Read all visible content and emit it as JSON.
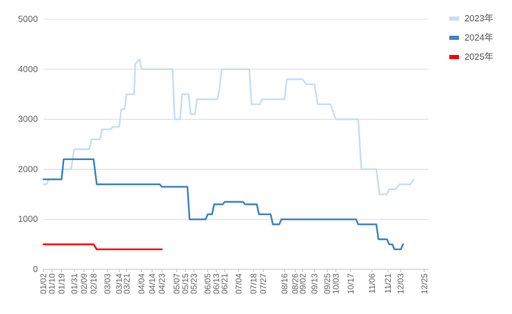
{
  "chart_data": {
    "type": "line",
    "title": "",
    "xlabel": "",
    "ylabel": "",
    "ylim": [
      0,
      5000
    ],
    "yticks": [
      0,
      1000,
      2000,
      3000,
      4000,
      5000
    ],
    "grid": true,
    "legend_position": "top-right",
    "x_tick_labels": [
      "01/02",
      "01/10",
      "01/19",
      "01/31",
      "02/09",
      "02/18",
      "03/03",
      "03/14",
      "03/21",
      "04/04",
      "04/14",
      "04/23",
      "05/07",
      "05/15",
      "05/23",
      "06/05",
      "06/13",
      "06/21",
      "07/04",
      "07/18",
      "07/27",
      "08/16",
      "08/26",
      "09/02",
      "09/13",
      "09/25",
      "10/03",
      "10/17",
      "11/06",
      "11/21",
      "12/03",
      "12/25"
    ],
    "series": [
      {
        "name": "2023年",
        "color": "#c8dff2",
        "points": [
          [
            "01/02",
            1700
          ],
          [
            "01/05",
            1700
          ],
          [
            "01/07",
            1800
          ],
          [
            "01/19",
            1800
          ],
          [
            "01/20",
            2000
          ],
          [
            "01/28",
            2000
          ],
          [
            "01/30",
            2300
          ],
          [
            "01/31",
            2400
          ],
          [
            "02/14",
            2400
          ],
          [
            "02/16",
            2600
          ],
          [
            "02/24",
            2600
          ],
          [
            "02/26",
            2800
          ],
          [
            "03/06",
            2800
          ],
          [
            "03/08",
            2850
          ],
          [
            "03/14",
            2850
          ],
          [
            "03/16",
            3200
          ],
          [
            "03/19",
            3200
          ],
          [
            "03/21",
            3500
          ],
          [
            "03/28",
            3500
          ],
          [
            "03/29",
            4100
          ],
          [
            "04/02",
            4200
          ],
          [
            "04/04",
            4000
          ],
          [
            "05/03",
            4000
          ],
          [
            "05/05",
            3000
          ],
          [
            "05/10",
            3000
          ],
          [
            "05/12",
            3500
          ],
          [
            "05/18",
            3500
          ],
          [
            "05/20",
            3100
          ],
          [
            "05/24",
            3100
          ],
          [
            "05/26",
            3400
          ],
          [
            "06/14",
            3400
          ],
          [
            "06/16",
            3600
          ],
          [
            "06/18",
            4000
          ],
          [
            "07/14",
            4000
          ],
          [
            "07/16",
            3300
          ],
          [
            "07/24",
            3300
          ],
          [
            "07/26",
            3400
          ],
          [
            "08/16",
            3400
          ],
          [
            "08/18",
            3800
          ],
          [
            "09/02",
            3800
          ],
          [
            "09/05",
            3700
          ],
          [
            "09/13",
            3700
          ],
          [
            "09/16",
            3300
          ],
          [
            "09/28",
            3300
          ],
          [
            "10/03",
            3000
          ],
          [
            "10/24",
            3000
          ],
          [
            "10/27",
            2000
          ],
          [
            "11/10",
            2000
          ],
          [
            "11/13",
            1500
          ],
          [
            "11/20",
            1500
          ],
          [
            "11/22",
            1600
          ],
          [
            "11/28",
            1600
          ],
          [
            "12/02",
            1700
          ],
          [
            "12/12",
            1700
          ],
          [
            "12/15",
            1800
          ]
        ]
      },
      {
        "name": "2024年",
        "color": "#4183c4",
        "points": [
          [
            "01/02",
            1800
          ],
          [
            "01/19",
            1800
          ],
          [
            "01/21",
            2200
          ],
          [
            "02/18",
            2200
          ],
          [
            "02/21",
            1700
          ],
          [
            "04/21",
            1700
          ],
          [
            "04/23",
            1650
          ],
          [
            "05/17",
            1650
          ],
          [
            "05/19",
            1000
          ],
          [
            "06/03",
            1000
          ],
          [
            "06/05",
            1100
          ],
          [
            "06/09",
            1100
          ],
          [
            "06/11",
            1300
          ],
          [
            "06/19",
            1300
          ],
          [
            "06/21",
            1350
          ],
          [
            "07/08",
            1350
          ],
          [
            "07/10",
            1300
          ],
          [
            "07/21",
            1300
          ],
          [
            "07/23",
            1100
          ],
          [
            "08/03",
            1100
          ],
          [
            "08/05",
            900
          ],
          [
            "08/11",
            900
          ],
          [
            "08/13",
            1000
          ],
          [
            "10/22",
            1000
          ],
          [
            "10/24",
            900
          ],
          [
            "11/10",
            900
          ],
          [
            "11/12",
            600
          ],
          [
            "11/20",
            600
          ],
          [
            "11/22",
            500
          ],
          [
            "11/25",
            500
          ],
          [
            "11/27",
            400
          ],
          [
            "12/03",
            400
          ],
          [
            "12/05",
            500
          ]
        ]
      },
      {
        "name": "2025年",
        "color": "#ff0000",
        "points": [
          [
            "01/02",
            500
          ],
          [
            "02/18",
            500
          ],
          [
            "02/21",
            400
          ],
          [
            "04/23",
            400
          ]
        ]
      }
    ]
  }
}
